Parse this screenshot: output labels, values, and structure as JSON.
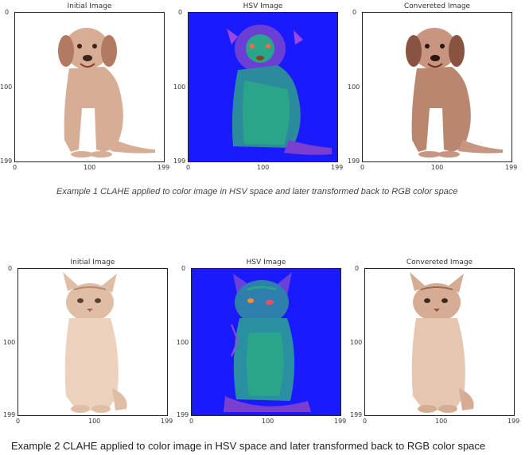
{
  "example1": {
    "panels": [
      {
        "title": "Initial Image",
        "yticks": [
          "0",
          "100",
          "199"
        ],
        "xticks": [
          "0",
          "100",
          "199"
        ]
      },
      {
        "title": "HSV Image",
        "yticks": [
          "0",
          "100",
          "199"
        ],
        "xticks": [
          "0",
          "100",
          "199"
        ]
      },
      {
        "title": "Convereted Image",
        "yticks": [
          "0",
          "100",
          "199"
        ],
        "xticks": [
          "0",
          "100",
          "199"
        ]
      }
    ],
    "caption": "Example 1 CLAHE applied to color image in HSV space and later transformed back to RGB color space"
  },
  "example2": {
    "panels": [
      {
        "title": "Initial Image",
        "yticks": [
          "0",
          "100",
          "199"
        ],
        "xticks": [
          "0",
          "100",
          "199"
        ]
      },
      {
        "title": "HSV Image",
        "yticks": [
          "0",
          "100",
          "199"
        ],
        "xticks": [
          "0",
          "100",
          "199"
        ]
      },
      {
        "title": "Convereted Image",
        "yticks": [
          "0",
          "100",
          "199"
        ],
        "xticks": [
          "0",
          "100",
          "199"
        ]
      }
    ],
    "caption": "Example 2 CLAHE applied to color image in HSV space and later transformed back to RGB color space"
  },
  "colors": {
    "hsv_background": "#1a1aff",
    "dog_fur": "#d9b09a",
    "cat_fur": "#e2c2a8",
    "teal": "#2aa58a"
  }
}
